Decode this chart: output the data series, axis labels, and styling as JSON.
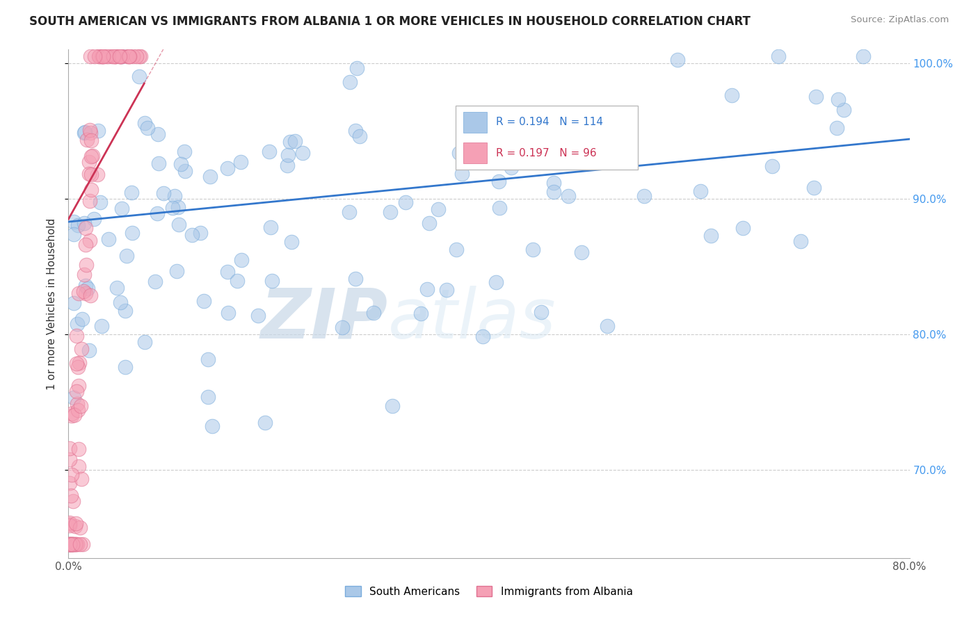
{
  "title": "SOUTH AMERICAN VS IMMIGRANTS FROM ALBANIA 1 OR MORE VEHICLES IN HOUSEHOLD CORRELATION CHART",
  "source": "Source: ZipAtlas.com",
  "ylabel": "1 or more Vehicles in Household",
  "xlim": [
    0.0,
    0.8
  ],
  "ylim": [
    0.635,
    1.01
  ],
  "yticks": [
    0.7,
    0.8,
    0.9,
    1.0
  ],
  "ytick_labels": [
    "70.0%",
    "80.0%",
    "90.0%",
    "100.0%"
  ],
  "blue_color": "#aac8e8",
  "pink_color": "#f5a0b5",
  "blue_line_color": "#3377cc",
  "pink_line_color": "#cc3355",
  "legend_blue_label": "South Americans",
  "legend_pink_label": "Immigrants from Albania",
  "R_blue": 0.194,
  "N_blue": 114,
  "R_pink": 0.197,
  "N_pink": 96,
  "watermark_zip": "ZIP",
  "watermark_atlas": "atlas",
  "blue_line_x0": 0.0,
  "blue_line_y0": 0.883,
  "blue_line_x1": 0.8,
  "blue_line_y1": 0.944,
  "pink_line_x0": 0.0,
  "pink_line_y0": 0.885,
  "pink_line_x1": 0.072,
  "pink_line_y1": 0.985
}
